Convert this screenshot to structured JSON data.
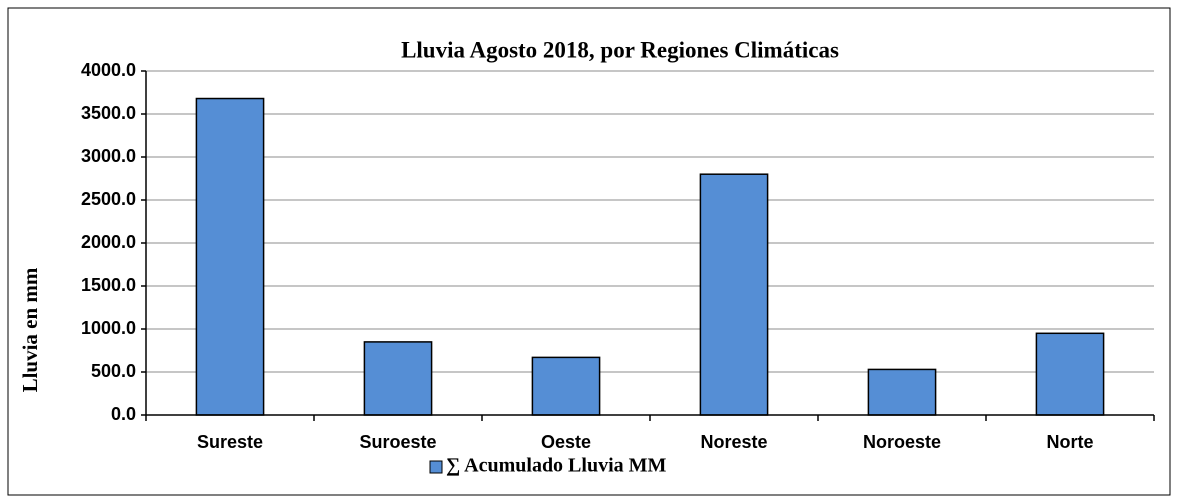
{
  "chart_data": {
    "type": "bar",
    "title": "Lluvia Agosto 2018, por Regiones Climáticas",
    "y_label": "Lluvia en mm",
    "categories": [
      "Sureste",
      "Suroeste",
      "Oeste",
      "Noreste",
      "Noroeste",
      "Norte"
    ],
    "series": [
      {
        "name": "∑ Acumulado Lluvia  MM",
        "color": "#558ed5",
        "values": [
          3680,
          850,
          670,
          2800,
          530,
          950
        ]
      }
    ],
    "ylim": [
      0,
      4000
    ],
    "yticks": [
      {
        "value": 0,
        "label": "0.0"
      },
      {
        "value": 500,
        "label": "500.0"
      },
      {
        "value": 1000,
        "label": "1000.0"
      },
      {
        "value": 1500,
        "label": "1500.0"
      },
      {
        "value": 2000,
        "label": "2000.0"
      },
      {
        "value": 2500,
        "label": "2500.0"
      },
      {
        "value": 3000,
        "label": "3000.0"
      },
      {
        "value": 3500,
        "label": "3500.0"
      },
      {
        "value": 4000,
        "label": "4000.0"
      }
    ],
    "grid": true,
    "legend": "bottom"
  }
}
